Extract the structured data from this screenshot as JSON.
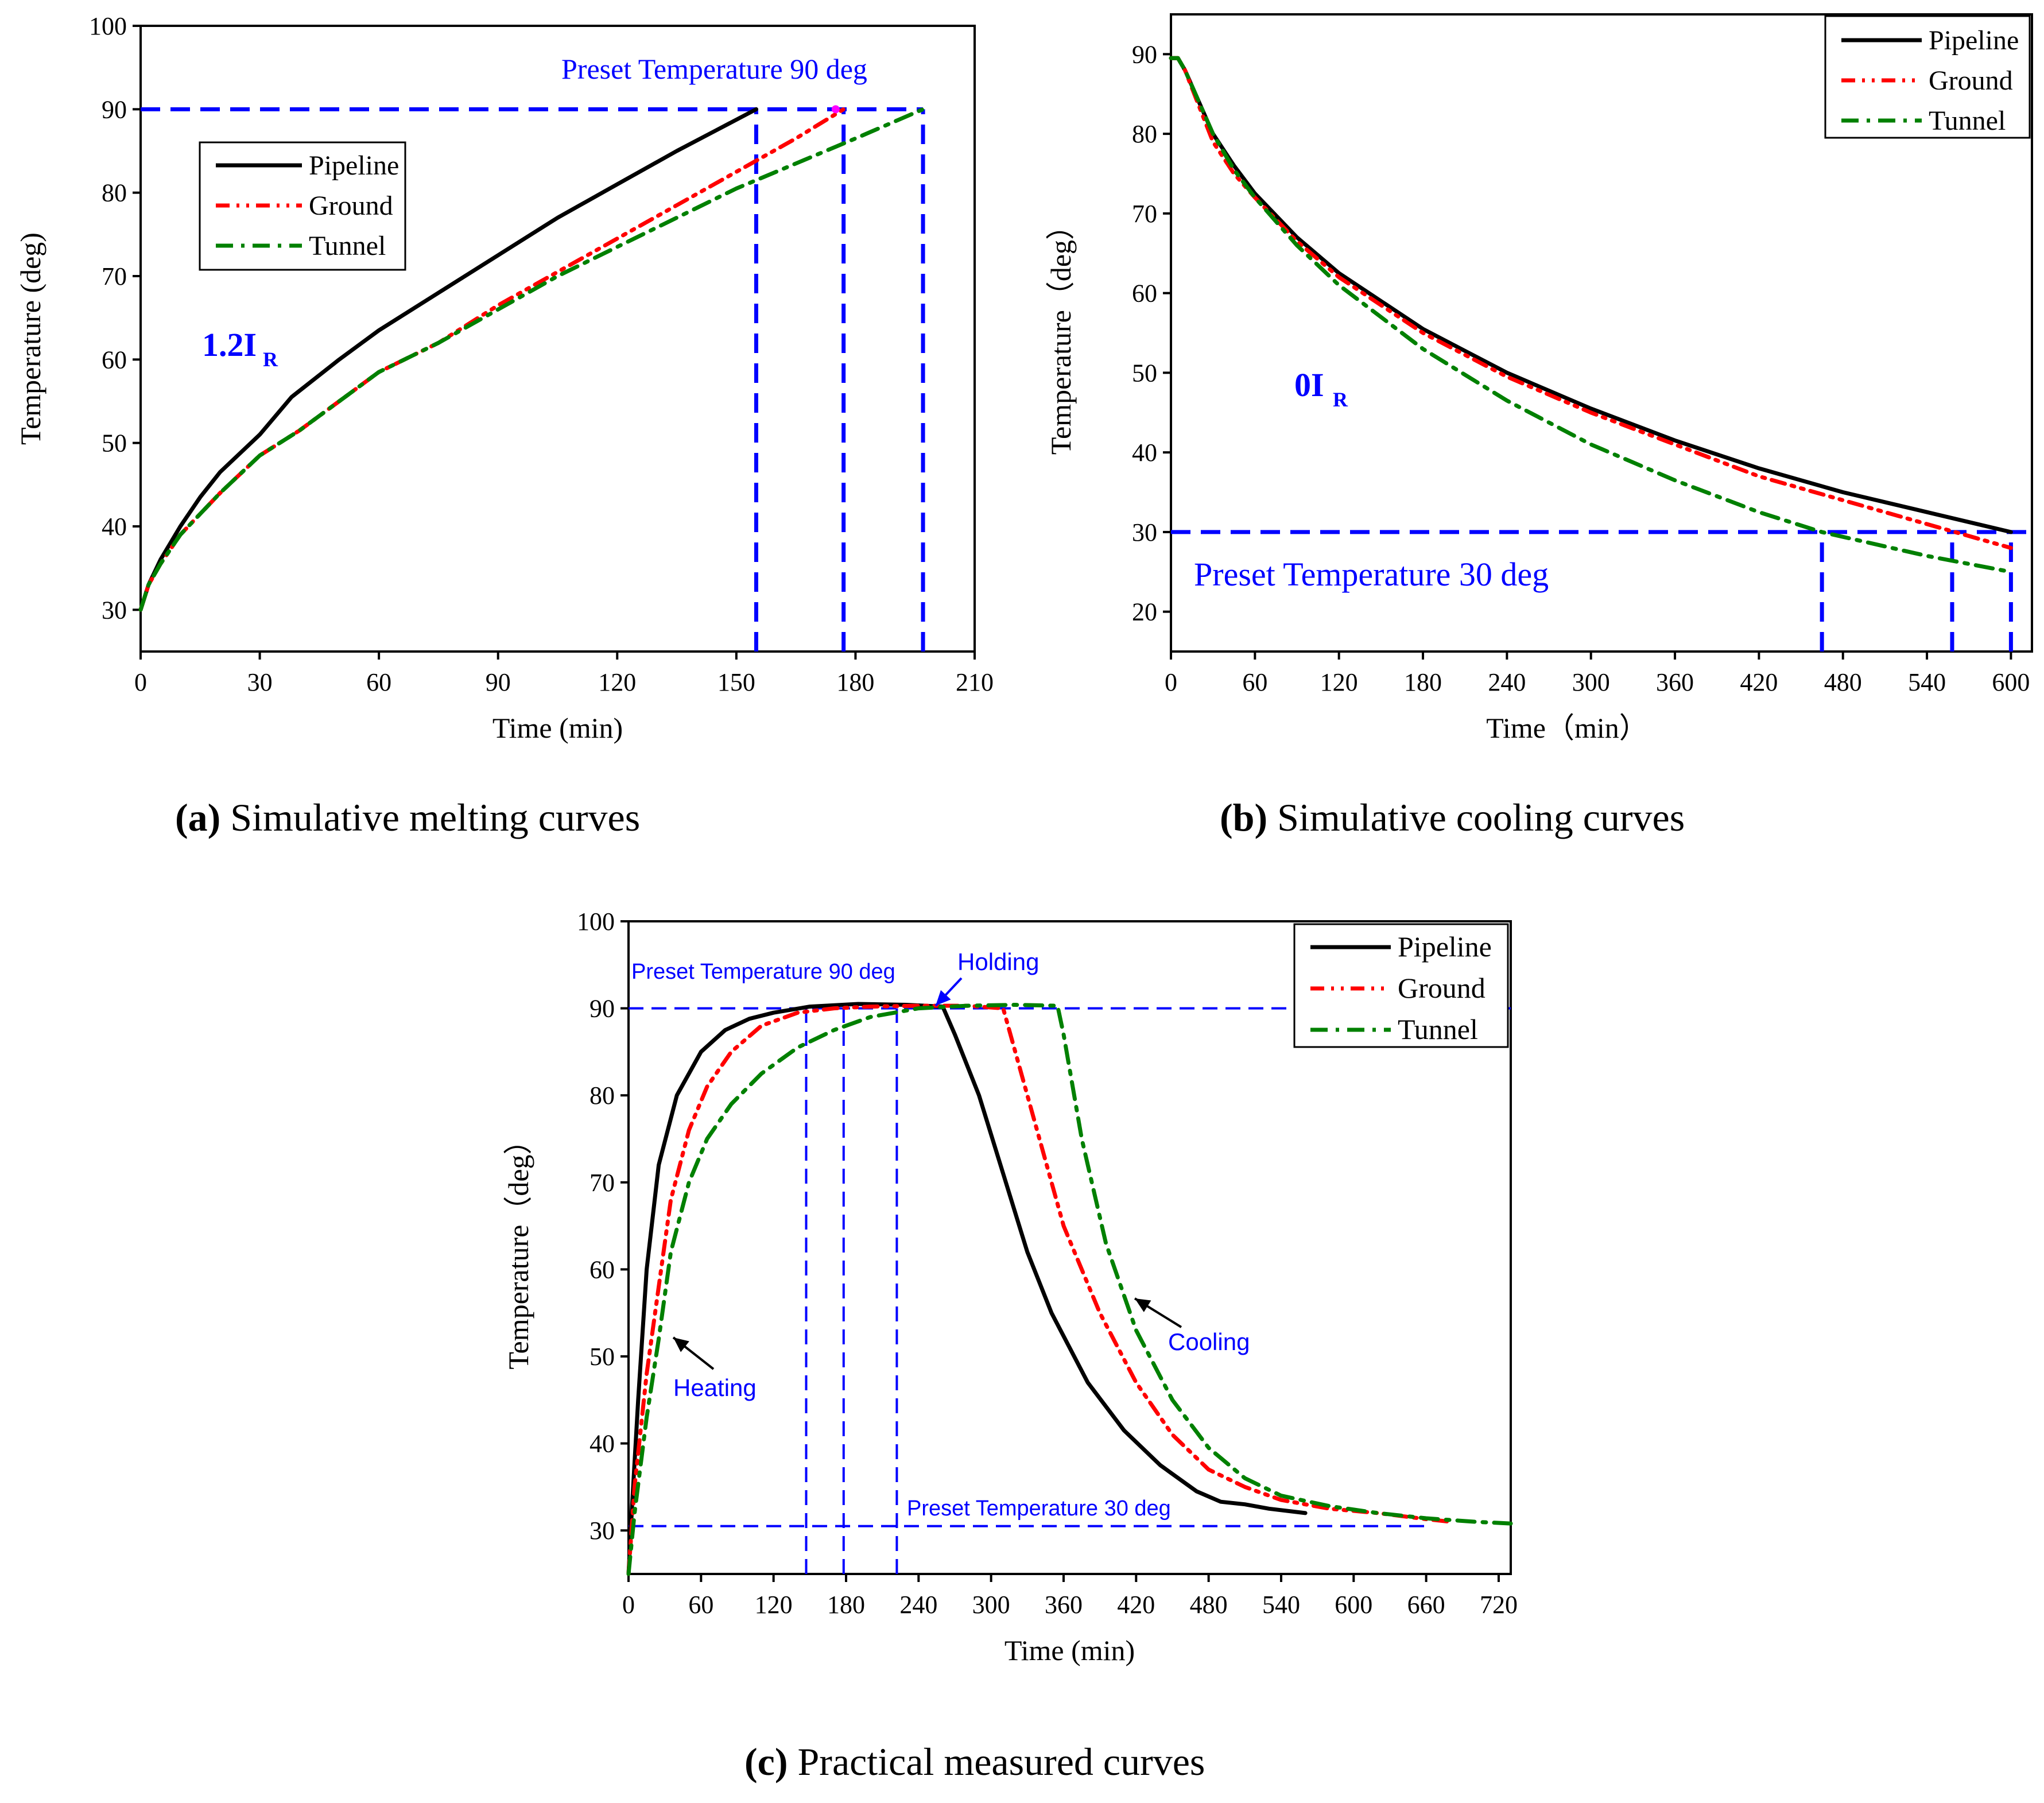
{
  "colors": {
    "pipeline": "#000000",
    "ground": "#ff0000",
    "tunnel": "#008000",
    "guide": "#0000ff",
    "annot": "#0000ff",
    "axis": "#000000",
    "marker": "#ff00ff"
  },
  "captions": {
    "a": {
      "letter": "(a)",
      "text": " Simulative melting curves"
    },
    "b": {
      "letter": "(b)",
      "text": " Simulative cooling curves"
    },
    "c": {
      "letter": "(c)",
      "text": " Practical measured curves"
    }
  },
  "chart_data": [
    {
      "id": "a",
      "type": "line",
      "title": "",
      "xlabel": "Time (min)",
      "ylabel": "Temperature (deg)",
      "xlim": [
        0,
        210
      ],
      "ylim": [
        25,
        100
      ],
      "xticks": [
        0,
        30,
        60,
        90,
        120,
        150,
        180,
        210
      ],
      "yticks": [
        30,
        40,
        50,
        60,
        70,
        80,
        90,
        100
      ],
      "legend": {
        "position": "upper-left",
        "entries": [
          "Pipeline",
          "Ground",
          "Tunnel"
        ]
      },
      "annotations": {
        "preset": "Preset Temperature 90 deg",
        "current_main": "1.2I",
        "current_sub": "R"
      },
      "guides": {
        "h": [
          {
            "y": 90,
            "x1": 0,
            "x2": 197
          }
        ],
        "v": [
          {
            "x": 155,
            "y1": 25,
            "y2": 90
          },
          {
            "x": 177,
            "y1": 25,
            "y2": 90
          },
          {
            "x": 197,
            "y1": 25,
            "y2": 90
          }
        ]
      },
      "series": [
        {
          "name": "Pipeline",
          "x": [
            0,
            2,
            5,
            10,
            15,
            20,
            30,
            38,
            50,
            60,
            75,
            90,
            105,
            120,
            135,
            145,
            155
          ],
          "y": [
            30,
            33,
            36,
            40,
            43.5,
            46.5,
            51,
            55.5,
            60,
            63.5,
            68,
            72.5,
            77,
            81,
            85,
            87.5,
            90
          ]
        },
        {
          "name": "Ground",
          "x": [
            0,
            2,
            5,
            10,
            20,
            30,
            40,
            50,
            60,
            75,
            90,
            105,
            120,
            135,
            150,
            165,
            177
          ],
          "y": [
            30,
            33,
            35.5,
            39,
            44,
            48.5,
            51.5,
            55,
            58.5,
            62,
            66.5,
            70.5,
            74.5,
            78.5,
            82.5,
            86.5,
            90
          ]
        },
        {
          "name": "Tunnel",
          "x": [
            0,
            2,
            5,
            10,
            20,
            30,
            40,
            50,
            60,
            75,
            90,
            105,
            120,
            135,
            150,
            165,
            180,
            197
          ],
          "y": [
            30,
            33,
            35.5,
            39,
            44,
            48.5,
            51.5,
            55,
            58.5,
            62,
            66,
            70,
            73.5,
            77,
            80.5,
            83.5,
            86.5,
            90
          ]
        }
      ]
    },
    {
      "id": "b",
      "type": "line",
      "title": "",
      "xlabel": "Time（min）",
      "ylabel": "Temperature（deg）",
      "xlim": [
        0,
        615
      ],
      "ylim": [
        15,
        95
      ],
      "xticks": [
        0,
        60,
        120,
        180,
        240,
        300,
        360,
        420,
        480,
        540,
        600
      ],
      "yticks": [
        20,
        30,
        40,
        50,
        60,
        70,
        80,
        90
      ],
      "legend": {
        "position": "top-right",
        "entries": [
          "Pipeline",
          "Ground",
          "Tunnel"
        ]
      },
      "annotations": {
        "preset": "Preset Temperature 30 deg",
        "current_main": "0I",
        "current_sub": "R"
      },
      "guides": {
        "h": [
          {
            "y": 30,
            "x1": 0,
            "x2": 615
          }
        ],
        "v": [
          {
            "x": 465,
            "y1": 15,
            "y2": 30
          },
          {
            "x": 558,
            "y1": 15,
            "y2": 30
          },
          {
            "x": 600,
            "y1": 15,
            "y2": 30
          }
        ]
      },
      "series": [
        {
          "name": "Pipeline",
          "x": [
            0,
            5,
            10,
            20,
            30,
            45,
            60,
            90,
            120,
            180,
            240,
            300,
            360,
            420,
            480,
            540,
            600
          ],
          "y": [
            89.5,
            89.5,
            88,
            84,
            80,
            76,
            72.5,
            67,
            62.5,
            55.5,
            50,
            45.5,
            41.5,
            38,
            35,
            32.5,
            30
          ]
        },
        {
          "name": "Ground",
          "x": [
            0,
            5,
            10,
            20,
            30,
            45,
            60,
            90,
            120,
            180,
            240,
            300,
            360,
            420,
            480,
            540,
            600
          ],
          "y": [
            89.5,
            89.5,
            88,
            83.5,
            79,
            75,
            72,
            66.5,
            62,
            55,
            49.5,
            45,
            41,
            37,
            34,
            31,
            28
          ]
        },
        {
          "name": "Tunnel",
          "x": [
            0,
            5,
            10,
            20,
            30,
            45,
            60,
            90,
            120,
            180,
            240,
            300,
            360,
            420,
            465,
            540,
            600
          ],
          "y": [
            89.5,
            89.5,
            88,
            84,
            80,
            75.5,
            72,
            66,
            61,
            53,
            46.5,
            41,
            36.5,
            32.5,
            30,
            27,
            25
          ]
        }
      ]
    },
    {
      "id": "c",
      "type": "line",
      "title": "",
      "xlabel": "Time (min)",
      "ylabel": "Temperature（deg）",
      "xlim": [
        0,
        730
      ],
      "ylim": [
        25,
        100
      ],
      "xticks": [
        0,
        60,
        120,
        180,
        240,
        300,
        360,
        420,
        480,
        540,
        600,
        660,
        720
      ],
      "yticks": [
        30,
        40,
        50,
        60,
        70,
        80,
        90,
        100
      ],
      "legend": {
        "position": "top-right",
        "entries": [
          "Pipeline",
          "Ground",
          "Tunnel"
        ]
      },
      "annotations": {
        "preset_high": "Preset Temperature 90 deg",
        "preset_low": "Preset Temperature 30 deg",
        "holding": "Holding",
        "heating": "Heating",
        "cooling": "Cooling"
      },
      "guides": {
        "h": [
          {
            "y": 90,
            "x1": 0,
            "x2": 730
          },
          {
            "y": 30.5,
            "x1": 0,
            "x2": 660
          }
        ],
        "v": [
          {
            "x": 147,
            "y1": 25,
            "y2": 90
          },
          {
            "x": 178,
            "y1": 25,
            "y2": 90
          },
          {
            "x": 222,
            "y1": 25,
            "y2": 90
          }
        ]
      },
      "series": [
        {
          "name": "Pipeline",
          "x": [
            0,
            3,
            8,
            15,
            25,
            40,
            60,
            80,
            100,
            120,
            150,
            190,
            230,
            260,
            270,
            290,
            310,
            330,
            350,
            380,
            410,
            440,
            470,
            490,
            510,
            530,
            560
          ],
          "y": [
            25,
            33,
            45,
            60,
            72,
            80,
            85,
            87.5,
            88.8,
            89.5,
            90.2,
            90.5,
            90.4,
            90.2,
            87,
            80,
            71,
            62,
            55,
            47,
            41.5,
            37.5,
            34.5,
            33.3,
            33,
            32.5,
            32
          ]
        },
        {
          "name": "Ground",
          "x": [
            0,
            5,
            15,
            25,
            35,
            50,
            65,
            85,
            110,
            140,
            170,
            200,
            240,
            280,
            310,
            320,
            340,
            360,
            390,
            420,
            450,
            480,
            510,
            540,
            580,
            620,
            660,
            680
          ],
          "y": [
            25,
            35,
            48,
            58,
            68,
            76,
            81,
            85,
            88,
            89.5,
            90,
            90.2,
            90.3,
            90.3,
            90,
            85,
            75,
            65,
            55,
            47,
            41,
            37,
            35,
            33.5,
            32.5,
            32,
            31.3,
            31
          ]
        },
        {
          "name": "Tunnel",
          "x": [
            0,
            5,
            15,
            25,
            35,
            50,
            65,
            85,
            110,
            140,
            170,
            200,
            240,
            280,
            320,
            355,
            360,
            375,
            395,
            420,
            450,
            480,
            510,
            540,
            580,
            620,
            660,
            700,
            730
          ],
          "y": [
            25,
            32,
            43,
            52,
            62,
            70,
            75,
            79,
            82.5,
            85.5,
            87.5,
            89,
            90,
            90.3,
            90.4,
            90.3,
            87,
            75,
            63,
            53,
            45,
            39.5,
            36,
            34,
            32.8,
            32,
            31.4,
            31,
            30.8
          ]
        }
      ]
    }
  ]
}
